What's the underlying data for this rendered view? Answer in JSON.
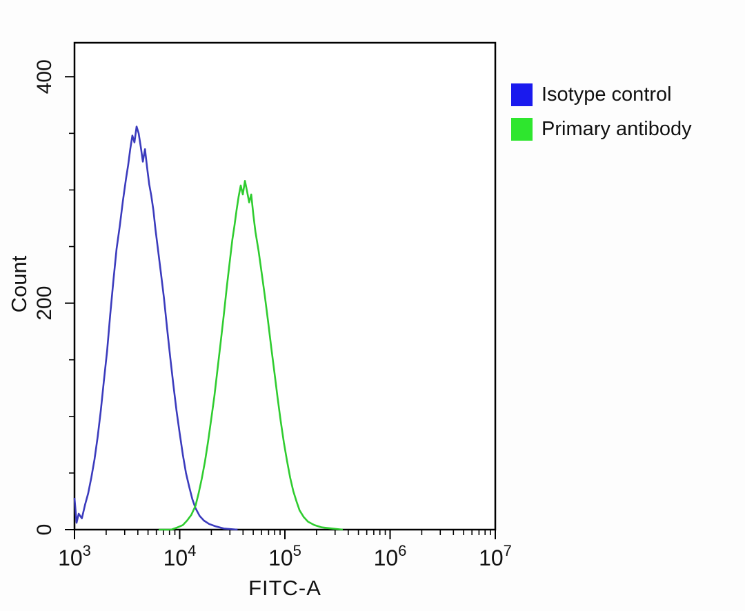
{
  "chart_data": {
    "type": "line",
    "title": "",
    "xlabel": "FITC-A",
    "ylabel": "Count",
    "x_scale": "log",
    "xlim_log10": [
      3,
      7
    ],
    "x_major_tick_exponents": [
      3,
      4,
      5,
      6,
      7
    ],
    "ylim": [
      0,
      430
    ],
    "y_major_ticks": [
      0,
      200,
      400
    ],
    "y_minor_step": 50,
    "grid": "off",
    "legend_position": "outside-top-right",
    "plot_border_color": "#000000",
    "series": [
      {
        "name": "Isotype control",
        "color": "#3b3bbd",
        "legend_color": "#1a1aee",
        "points_log10x_count": [
          [
            3.0,
            28
          ],
          [
            3.02,
            6
          ],
          [
            3.04,
            14
          ],
          [
            3.07,
            10
          ],
          [
            3.1,
            22
          ],
          [
            3.13,
            32
          ],
          [
            3.16,
            46
          ],
          [
            3.19,
            62
          ],
          [
            3.22,
            82
          ],
          [
            3.25,
            105
          ],
          [
            3.28,
            132
          ],
          [
            3.31,
            158
          ],
          [
            3.34,
            190
          ],
          [
            3.37,
            220
          ],
          [
            3.4,
            248
          ],
          [
            3.43,
            268
          ],
          [
            3.46,
            290
          ],
          [
            3.49,
            310
          ],
          [
            3.51,
            322
          ],
          [
            3.53,
            336
          ],
          [
            3.55,
            348
          ],
          [
            3.57,
            342
          ],
          [
            3.59,
            356
          ],
          [
            3.61,
            350
          ],
          [
            3.63,
            338
          ],
          [
            3.65,
            325
          ],
          [
            3.67,
            336
          ],
          [
            3.69,
            320
          ],
          [
            3.71,
            305
          ],
          [
            3.73,
            295
          ],
          [
            3.75,
            282
          ],
          [
            3.77,
            265
          ],
          [
            3.79,
            250
          ],
          [
            3.82,
            228
          ],
          [
            3.85,
            205
          ],
          [
            3.88,
            178
          ],
          [
            3.91,
            152
          ],
          [
            3.94,
            128
          ],
          [
            3.97,
            105
          ],
          [
            4.0,
            85
          ],
          [
            4.03,
            66
          ],
          [
            4.06,
            50
          ],
          [
            4.09,
            38
          ],
          [
            4.12,
            27
          ],
          [
            4.15,
            19
          ],
          [
            4.19,
            12
          ],
          [
            4.23,
            8
          ],
          [
            4.28,
            5
          ],
          [
            4.34,
            3
          ],
          [
            4.42,
            1
          ],
          [
            4.55,
            0
          ]
        ]
      },
      {
        "name": "Primary antibody",
        "color": "#2fcc2f",
        "legend_color": "#2ee62e",
        "points_log10x_count": [
          [
            3.8,
            0
          ],
          [
            3.92,
            0
          ],
          [
            3.98,
            2
          ],
          [
            4.03,
            4
          ],
          [
            4.07,
            8
          ],
          [
            4.11,
            13
          ],
          [
            4.15,
            21
          ],
          [
            4.18,
            32
          ],
          [
            4.21,
            45
          ],
          [
            4.24,
            60
          ],
          [
            4.27,
            78
          ],
          [
            4.3,
            98
          ],
          [
            4.33,
            118
          ],
          [
            4.36,
            142
          ],
          [
            4.39,
            166
          ],
          [
            4.42,
            190
          ],
          [
            4.45,
            216
          ],
          [
            4.48,
            240
          ],
          [
            4.5,
            256
          ],
          [
            4.52,
            268
          ],
          [
            4.54,
            282
          ],
          [
            4.56,
            294
          ],
          [
            4.58,
            304
          ],
          [
            4.6,
            296
          ],
          [
            4.62,
            308
          ],
          [
            4.64,
            299
          ],
          [
            4.66,
            289
          ],
          [
            4.68,
            296
          ],
          [
            4.7,
            278
          ],
          [
            4.72,
            263
          ],
          [
            4.75,
            246
          ],
          [
            4.78,
            226
          ],
          [
            4.81,
            206
          ],
          [
            4.84,
            184
          ],
          [
            4.87,
            161
          ],
          [
            4.9,
            139
          ],
          [
            4.93,
            117
          ],
          [
            4.96,
            96
          ],
          [
            4.99,
            77
          ],
          [
            5.02,
            61
          ],
          [
            5.05,
            46
          ],
          [
            5.08,
            34
          ],
          [
            5.11,
            25
          ],
          [
            5.14,
            17
          ],
          [
            5.18,
            11
          ],
          [
            5.22,
            7
          ],
          [
            5.28,
            4
          ],
          [
            5.35,
            2
          ],
          [
            5.45,
            1
          ],
          [
            5.55,
            0
          ]
        ]
      }
    ]
  }
}
